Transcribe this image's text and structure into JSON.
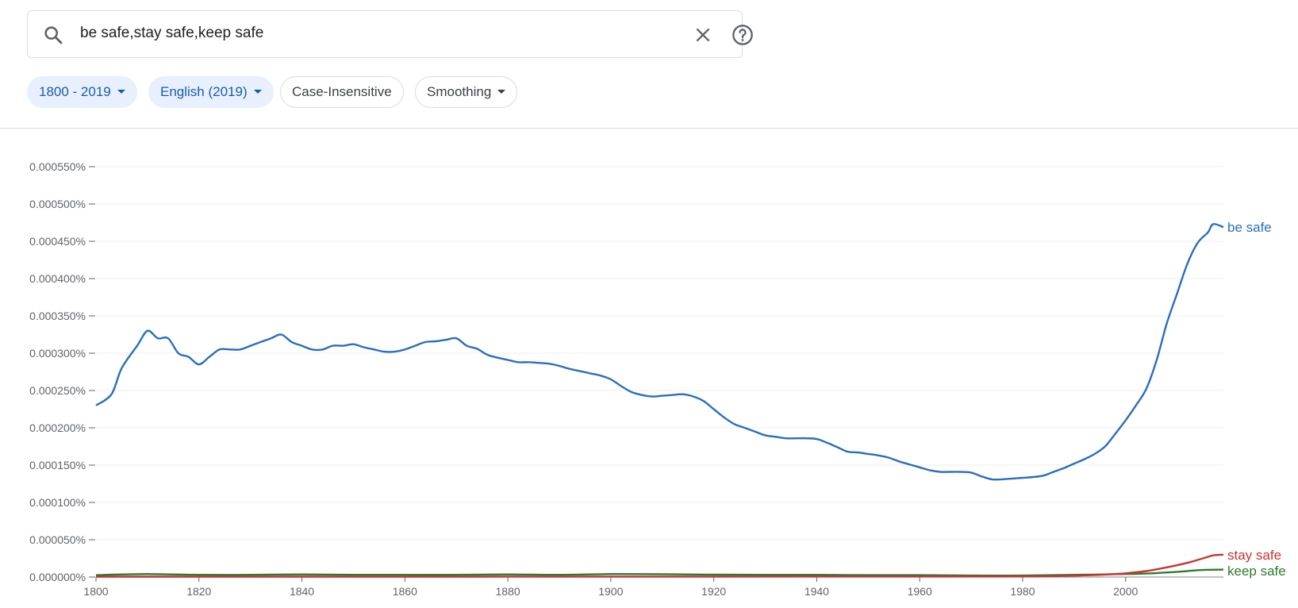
{
  "search": {
    "query": "be safe,stay safe,keep safe"
  },
  "filters": {
    "year_range": {
      "label": "1800 - 2019"
    },
    "corpus": {
      "label": "English (2019)"
    },
    "case": {
      "label": "Case-Insensitive"
    },
    "smoothing": {
      "label": "Smoothing"
    }
  },
  "icons": {
    "search": "search-icon",
    "clear": "close-icon",
    "help": "help-circle-icon",
    "dropdown": "caret-down-icon"
  },
  "colors": {
    "accent": "#1a5ca8",
    "chip_selected_bg": "#e8f0fe",
    "be_safe": "#2a6ebf",
    "stay_safe": "#c53533",
    "keep_safe": "#2d7a31"
  },
  "chart_data": {
    "type": "line",
    "xlim": [
      1800,
      2019
    ],
    "ylim": [
      0,
      0.00055
    ],
    "x_ticks": [
      1800,
      1820,
      1840,
      1860,
      1880,
      1900,
      1920,
      1940,
      1960,
      1980,
      2000
    ],
    "x_tick_labels": [
      "1800",
      "1820",
      "1840",
      "1860",
      "1880",
      "1900",
      "1920",
      "1940",
      "1960",
      "1980",
      "2000"
    ],
    "y_ticks": [
      0,
      5e-05,
      0.0001,
      0.00015,
      0.0002,
      0.00025,
      0.0003,
      0.00035,
      0.0004,
      0.00045,
      0.0005,
      0.00055
    ],
    "y_tick_labels": [
      "0.000000%",
      "0.000050%",
      "0.000100%",
      "0.000150%",
      "0.000200%",
      "0.000250%",
      "0.000300%",
      "0.000350%",
      "0.000400%",
      "0.000450%",
      "0.000500%",
      "0.000550%"
    ],
    "grid": true,
    "legend": "end-of-line labels",
    "series": [
      {
        "name": "be safe",
        "color": "#2a6ebf",
        "x": [
          1800,
          1803,
          1805,
          1808,
          1810,
          1812,
          1814,
          1816,
          1818,
          1820,
          1822,
          1824,
          1826,
          1828,
          1830,
          1832,
          1834,
          1836,
          1838,
          1840,
          1842,
          1844,
          1846,
          1848,
          1850,
          1852,
          1854,
          1856,
          1858,
          1860,
          1862,
          1864,
          1866,
          1868,
          1870,
          1872,
          1874,
          1876,
          1878,
          1880,
          1882,
          1884,
          1886,
          1888,
          1890,
          1892,
          1894,
          1896,
          1898,
          1900,
          1902,
          1904,
          1906,
          1908,
          1910,
          1912,
          1914,
          1916,
          1918,
          1920,
          1922,
          1924,
          1926,
          1928,
          1930,
          1932,
          1934,
          1936,
          1938,
          1940,
          1942,
          1944,
          1946,
          1948,
          1950,
          1952,
          1954,
          1956,
          1958,
          1960,
          1962,
          1964,
          1966,
          1968,
          1970,
          1972,
          1974,
          1976,
          1978,
          1980,
          1982,
          1984,
          1986,
          1988,
          1990,
          1992,
          1994,
          1996,
          1998,
          2000,
          2002,
          2004,
          2006,
          2008,
          2010,
          2012,
          2014,
          2016,
          2017,
          2019
        ],
        "values": [
          0.00023,
          0.000245,
          0.00028,
          0.00031,
          0.00033,
          0.00032,
          0.00032,
          0.0003,
          0.000295,
          0.000285,
          0.000295,
          0.000305,
          0.000305,
          0.000305,
          0.00031,
          0.000315,
          0.00032,
          0.000325,
          0.000315,
          0.00031,
          0.000305,
          0.000305,
          0.00031,
          0.00031,
          0.000312,
          0.000308,
          0.000305,
          0.000302,
          0.000302,
          0.000305,
          0.00031,
          0.000315,
          0.000316,
          0.000318,
          0.00032,
          0.00031,
          0.000306,
          0.000298,
          0.000294,
          0.000291,
          0.000288,
          0.000288,
          0.000287,
          0.000286,
          0.000283,
          0.000279,
          0.000276,
          0.000273,
          0.00027,
          0.000265,
          0.000256,
          0.000248,
          0.000244,
          0.000242,
          0.000243,
          0.000244,
          0.000245,
          0.000242,
          0.000236,
          0.000225,
          0.000214,
          0.000205,
          0.0002,
          0.000195,
          0.00019,
          0.000188,
          0.000186,
          0.000186,
          0.000186,
          0.000185,
          0.00018,
          0.000174,
          0.000168,
          0.000167,
          0.000165,
          0.000163,
          0.00016,
          0.000155,
          0.000151,
          0.000147,
          0.000143,
          0.000141,
          0.000141,
          0.000141,
          0.00014,
          0.000135,
          0.000131,
          0.000131,
          0.000132,
          0.000133,
          0.000134,
          0.000136,
          0.000141,
          0.000146,
          0.000152,
          0.000158,
          0.000165,
          0.000175,
          0.000192,
          0.00021,
          0.00023,
          0.000252,
          0.00029,
          0.00034,
          0.00038,
          0.00042,
          0.000448,
          0.000462,
          0.000473,
          0.000469
        ]
      },
      {
        "name": "stay safe",
        "color": "#c53533",
        "x": [
          1800,
          1850,
          1900,
          1950,
          1975,
          1985,
          1990,
          1995,
          2000,
          2004,
          2008,
          2012,
          2015,
          2017,
          2019
        ],
        "values": [
          5e-07,
          5e-07,
          6e-07,
          7e-07,
          8e-07,
          1.2e-06,
          1.8e-06,
          3e-06,
          5e-06,
          8e-06,
          1.3e-05,
          1.9e-05,
          2.5e-05,
          2.9e-05,
          3e-05
        ]
      },
      {
        "name": "keep safe",
        "color": "#2d7a31",
        "x": [
          1800,
          1805,
          1810,
          1815,
          1820,
          1830,
          1840,
          1850,
          1860,
          1870,
          1880,
          1890,
          1900,
          1910,
          1920,
          1930,
          1940,
          1950,
          1960,
          1970,
          1980,
          1990,
          2000,
          2005,
          2010,
          2015,
          2019
        ],
        "values": [
          2.5e-06,
          3.5e-06,
          4e-06,
          3.5e-06,
          3e-06,
          3e-06,
          3.5e-06,
          3e-06,
          3e-06,
          3e-06,
          3.5e-06,
          3e-06,
          4e-06,
          3.8e-06,
          3.2e-06,
          3e-06,
          3e-06,
          2.5e-06,
          2.5e-06,
          2e-06,
          2e-06,
          3e-06,
          4e-06,
          5e-06,
          7e-06,
          9.5e-06,
          1e-05
        ]
      }
    ]
  }
}
